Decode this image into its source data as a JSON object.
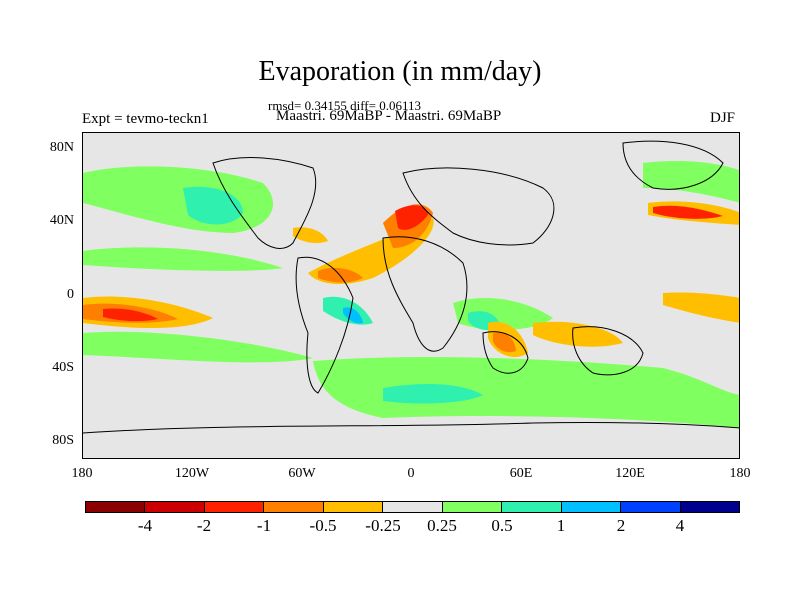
{
  "title": "Evaporation (in mm/day)",
  "stats": "rmsd= 0.34155 diff= 0.06113",
  "experiment": "Expt = tevmo-teckn1",
  "comparison": "Maastri.  69MaBP - Maastri.  69MaBP",
  "season": "DJF",
  "lat_labels": [
    "80N",
    "40N",
    "0",
    "40S",
    "80S"
  ],
  "lon_labels": [
    "180",
    "120W",
    "60W",
    "0",
    "60E",
    "120E",
    "180"
  ],
  "colorbar": {
    "colors": [
      "#8b0000",
      "#cc0000",
      "#ff2200",
      "#ff7f00",
      "#ffbf00",
      "#e6e6e6",
      "#80ff60",
      "#30f0b0",
      "#00c0ff",
      "#0040ff",
      "#000090"
    ],
    "labels": [
      "-4",
      "-2",
      "-1",
      "-0.5",
      "-0.25",
      "0.25",
      "0.5",
      "1",
      "2",
      "4"
    ]
  },
  "map": {
    "background_color": "#e6e6e6",
    "land_outline_color": "#000000"
  }
}
